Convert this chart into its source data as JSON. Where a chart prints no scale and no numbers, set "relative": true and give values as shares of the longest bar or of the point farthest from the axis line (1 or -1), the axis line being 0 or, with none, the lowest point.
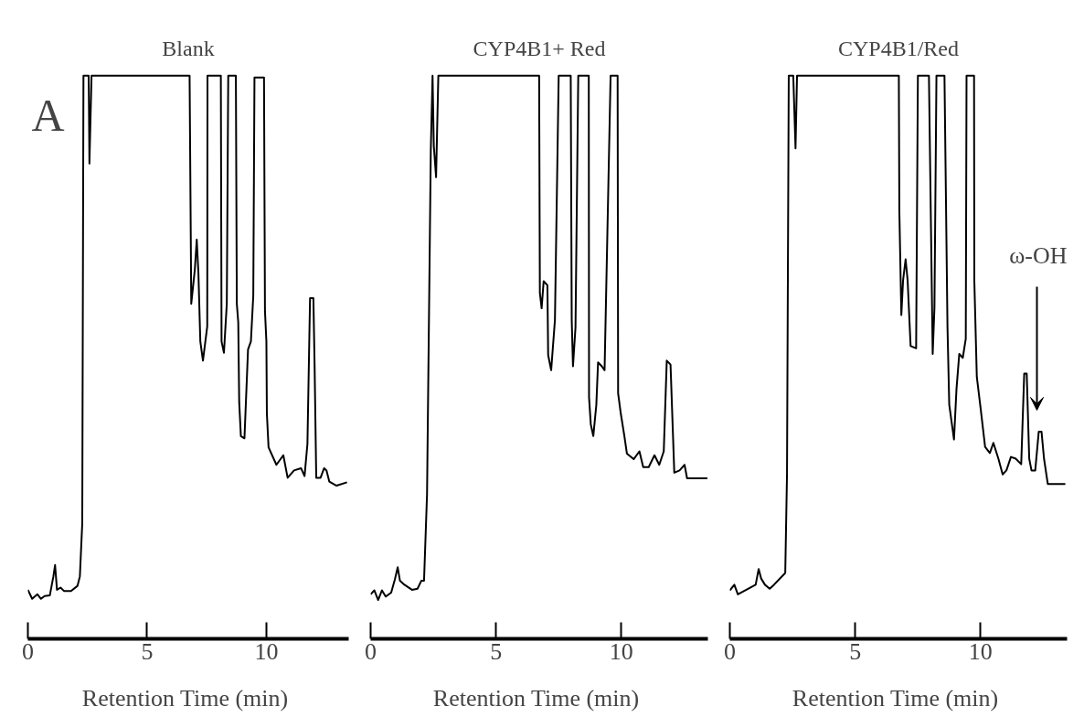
{
  "chart_data": [
    {
      "type": "line",
      "title": "Blank",
      "xlabel": "Retention Time  (min)",
      "relative": true,
      "xlim": [
        0,
        13.45
      ],
      "xticks": [
        0,
        5,
        10
      ],
      "grid": false,
      "annotations": [
        "A"
      ],
      "series": [
        {
          "color": "#000000",
          "x": [
            0,
            0.18,
            0.4,
            0.55,
            0.7,
            0.92,
            1.07,
            1.14,
            1.22,
            1.37,
            1.51,
            1.81,
            2.08,
            2.18,
            2.28,
            2.33,
            2.55,
            2.58,
            2.67,
            6.78,
            6.85,
            7.0,
            7.08,
            7.15,
            7.23,
            7.34,
            7.52,
            7.53,
            8.09,
            8.12,
            8.22,
            8.34,
            8.4,
            8.72,
            8.76,
            8.82,
            8.86,
            8.93,
            9.08,
            9.23,
            9.35,
            9.45,
            9.5,
            9.9,
            9.94,
            10.0,
            10.02,
            10.09,
            10.42,
            10.71,
            10.89,
            11.16,
            11.45,
            11.6,
            11.72,
            11.83,
            11.97,
            12.02,
            12.09,
            12.27,
            12.42,
            12.52,
            12.64,
            12.94,
            13.38
          ],
          "values": [
            0.087,
            0.071,
            0.079,
            0.071,
            0.076,
            0.077,
            0.111,
            0.131,
            0.087,
            0.091,
            0.085,
            0.085,
            0.094,
            0.111,
            0.205,
            1.0,
            1.0,
            0.844,
            1.0,
            1.0,
            0.595,
            0.656,
            0.709,
            0.649,
            0.528,
            0.494,
            0.555,
            1.0,
            1.0,
            0.528,
            0.508,
            0.595,
            1.0,
            1.0,
            0.595,
            0.562,
            0.42,
            0.36,
            0.356,
            0.514,
            0.528,
            0.609,
            0.997,
            0.997,
            0.582,
            0.528,
            0.4,
            0.34,
            0.309,
            0.326,
            0.286,
            0.299,
            0.303,
            0.289,
            0.346,
            0.605,
            0.605,
            0.488,
            0.286,
            0.286,
            0.303,
            0.299,
            0.279,
            0.272,
            0.278
          ]
        }
      ]
    },
    {
      "type": "line",
      "title": "CYP4B1+ Red",
      "xlabel": "Retention Time  (min)",
      "relative": true,
      "xlim": [
        0,
        13.45
      ],
      "xticks": [
        0,
        5,
        10
      ],
      "grid": false,
      "series": [
        {
          "color": "#000000",
          "x": [
            0,
            0.15,
            0.3,
            0.45,
            0.6,
            0.82,
            0.97,
            1.08,
            1.17,
            1.35,
            1.65,
            1.87,
            2.02,
            2.13,
            2.25,
            2.4,
            2.47,
            2.52,
            2.61,
            2.7,
            6.72,
            6.75,
            6.82,
            6.9,
            7.05,
            7.08,
            7.2,
            7.35,
            7.5,
            7.98,
            8.02,
            8.07,
            8.17,
            8.28,
            8.7,
            8.71,
            8.78,
            8.88,
            9.0,
            9.07,
            9.22,
            9.33,
            9.57,
            9.85,
            9.87,
            9.97,
            10.12,
            10.22,
            10.49,
            10.72,
            10.87,
            11.09,
            11.32,
            11.51,
            11.69,
            11.81,
            11.96,
            12.11,
            12.32,
            12.52,
            12.62,
            13.43
          ],
          "values": [
            0.079,
            0.086,
            0.069,
            0.086,
            0.075,
            0.082,
            0.106,
            0.127,
            0.103,
            0.096,
            0.087,
            0.089,
            0.103,
            0.103,
            0.257,
            0.868,
            1.0,
            0.875,
            0.82,
            1.0,
            1.0,
            0.614,
            0.587,
            0.635,
            0.628,
            0.504,
            0.477,
            0.566,
            1.0,
            1.0,
            0.566,
            0.484,
            0.553,
            1.0,
            1.0,
            0.429,
            0.381,
            0.36,
            0.415,
            0.491,
            0.484,
            0.477,
            1.0,
            1.0,
            0.436,
            0.402,
            0.36,
            0.329,
            0.319,
            0.333,
            0.305,
            0.305,
            0.326,
            0.309,
            0.333,
            0.494,
            0.487,
            0.295,
            0.299,
            0.309,
            0.285,
            0.285
          ]
        }
      ]
    },
    {
      "type": "line",
      "title": "CYP4B1/Red",
      "xlabel": "Retention Time  (min)",
      "relative": true,
      "xlim": [
        0,
        13.45
      ],
      "xticks": [
        0,
        5,
        10
      ],
      "grid": false,
      "annotations": [
        "ω-OH"
      ],
      "series": [
        {
          "color": "#000000",
          "x": [
            0,
            0.18,
            0.32,
            1.03,
            1.15,
            1.25,
            1.4,
            1.59,
            1.76,
            2.21,
            2.28,
            2.35,
            2.53,
            2.62,
            2.68,
            6.74,
            6.76,
            6.84,
            6.91,
            7.01,
            7.09,
            7.21,
            7.43,
            7.5,
            7.94,
            8.09,
            8.16,
            8.24,
            8.56,
            8.68,
            8.75,
            8.94,
            9.04,
            9.15,
            9.29,
            9.41,
            9.44,
            9.74,
            9.75,
            9.85,
            10.0,
            10.18,
            10.37,
            10.51,
            10.71,
            10.88,
            11.03,
            11.21,
            11.4,
            11.62,
            11.74,
            11.84,
            11.94,
            12.03,
            12.18,
            12.32,
            12.43,
            12.53,
            12.68,
            13.38
          ],
          "values": [
            0.086,
            0.096,
            0.079,
            0.096,
            0.124,
            0.107,
            0.096,
            0.089,
            0.096,
            0.117,
            0.292,
            1.0,
            1.0,
            0.871,
            1.0,
            1.0,
            0.761,
            0.575,
            0.637,
            0.674,
            0.637,
            0.52,
            0.516,
            1.0,
            1.0,
            0.506,
            0.588,
            1.0,
            1.0,
            0.554,
            0.416,
            0.354,
            0.444,
            0.506,
            0.499,
            0.533,
            1.0,
            1.0,
            0.637,
            0.465,
            0.41,
            0.341,
            0.33,
            0.348,
            0.32,
            0.292,
            0.299,
            0.323,
            0.32,
            0.31,
            0.471,
            0.471,
            0.32,
            0.299,
            0.299,
            0.368,
            0.368,
            0.32,
            0.275,
            0.275
          ]
        }
      ]
    }
  ]
}
